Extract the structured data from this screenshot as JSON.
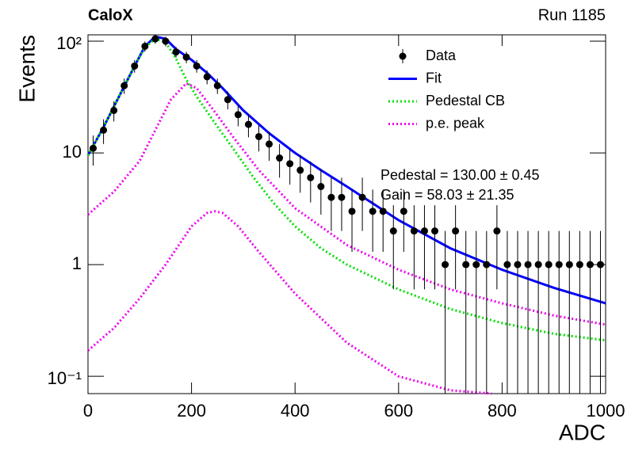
{
  "chart_data": {
    "type": "line",
    "title": "CaloX",
    "run_label": "Run 1185",
    "xlabel": "ADC",
    "ylabel": "Events",
    "log_y": true,
    "xlim": [
      0,
      1000
    ],
    "ylim": [
      0.07,
      114
    ],
    "xticks": [
      0,
      200,
      400,
      600,
      800,
      1000
    ],
    "yticks": [
      {
        "value": 0.1,
        "label": "10⁻¹"
      },
      1,
      10,
      {
        "value": 100,
        "label": "10²"
      }
    ],
    "data": {
      "name": "Data",
      "color": "#000000",
      "x": [
        10,
        30,
        50,
        70,
        90,
        110,
        130,
        150,
        170,
        190,
        210,
        230,
        250,
        270,
        290,
        310,
        330,
        350,
        370,
        390,
        410,
        430,
        450,
        470,
        490,
        510,
        530,
        550,
        570,
        590,
        610,
        630,
        650,
        670,
        690,
        710,
        730,
        750,
        770,
        790,
        810,
        830,
        850,
        870,
        890,
        910,
        930,
        950,
        970,
        990
      ],
      "values": [
        11,
        16,
        24,
        40,
        60,
        90,
        105,
        100,
        80,
        72,
        60,
        48,
        40,
        30,
        22,
        18,
        14,
        12,
        9,
        8,
        7,
        6,
        5,
        4,
        4,
        3,
        4,
        3,
        3,
        2,
        3,
        2,
        2,
        2,
        1,
        2,
        1,
        1,
        1,
        2,
        1,
        1,
        1,
        1,
        1,
        1,
        1,
        1,
        1,
        1
      ],
      "errors": [
        3.3,
        4,
        4.9,
        6.3,
        7.7,
        9.5,
        10.2,
        10,
        8.9,
        8.5,
        7.7,
        6.9,
        6.3,
        5.5,
        4.7,
        4.2,
        3.7,
        3.5,
        3,
        2.8,
        2.6,
        2.4,
        2.2,
        2,
        2,
        1.7,
        2,
        1.7,
        1.7,
        1.4,
        1.7,
        1.4,
        1.4,
        1.4,
        1,
        1.4,
        1,
        1,
        1,
        1.4,
        1,
        1,
        1,
        1,
        1,
        1,
        1,
        1,
        1,
        1
      ]
    },
    "series": [
      {
        "name": "Fit",
        "color": "#0000ff",
        "style": "solid",
        "x": [
          0,
          30,
          60,
          90,
          110,
          130,
          150,
          170,
          200,
          230,
          260,
          300,
          350,
          400,
          450,
          500,
          600,
          700,
          800,
          900,
          1000
        ],
        "values": [
          9.5,
          17,
          32,
          60,
          90,
          110,
          105,
          85,
          68,
          52,
          38,
          24,
          15,
          10,
          7,
          5,
          2.5,
          1.4,
          0.9,
          0.62,
          0.45
        ]
      },
      {
        "name": "Pedestal CB",
        "color": "#00e000",
        "style": "dotted",
        "x": [
          0,
          30,
          60,
          90,
          110,
          130,
          150,
          170,
          190,
          210,
          240,
          280,
          320,
          360,
          400,
          450,
          500,
          600,
          700,
          800,
          900,
          1000
        ],
        "values": [
          9.5,
          17,
          32,
          60,
          88,
          105,
          98,
          70,
          45,
          32,
          20,
          11,
          6,
          3.5,
          2.2,
          1.4,
          1.0,
          0.6,
          0.4,
          0.3,
          0.24,
          0.21
        ]
      },
      {
        "name": "p.e. peak",
        "color": "#ee00ee",
        "style": "dotted",
        "x": [
          0,
          50,
          100,
          130,
          160,
          190,
          210,
          240,
          280,
          330,
          400,
          500,
          600,
          700,
          800,
          900,
          1000,
          null,
          0,
          50,
          100,
          150,
          200,
          230,
          245,
          260,
          290,
          330,
          400,
          500,
          600,
          700,
          780
        ],
        "values": [
          2.8,
          4.5,
          8.5,
          16,
          30,
          42,
          38,
          25,
          14,
          7,
          3.2,
          1.5,
          0.9,
          0.6,
          0.45,
          0.35,
          0.29,
          null,
          0.17,
          0.27,
          0.5,
          1,
          2.2,
          2.9,
          3,
          2.9,
          2.2,
          1.3,
          0.55,
          0.2,
          0.1,
          0.075,
          0.07
        ]
      }
    ],
    "annotations": [
      "Pedestal = 130.00 ± 0.45",
      "Gain = 58.03 ± 21.35"
    ]
  }
}
